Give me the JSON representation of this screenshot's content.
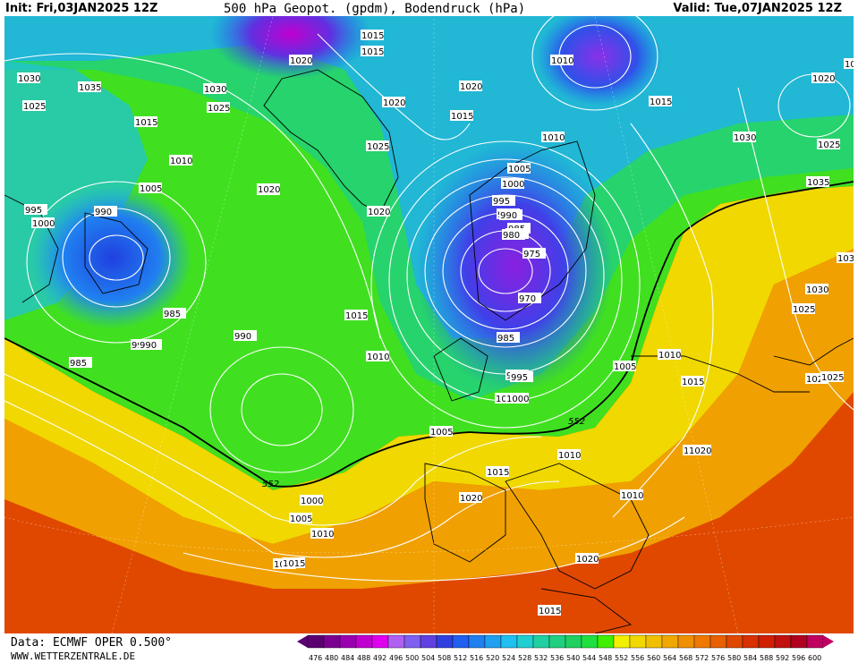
{
  "header": {
    "init": "Init: Fri,03JAN2025 12Z",
    "title": "500 hPa Geopot. (gpdm), Bodendruck (hPa)",
    "valid": "Valid: Tue,07JAN2025 12Z"
  },
  "footer": {
    "data_source": "Data: ECMWF OPER 0.500°",
    "website": "WWW.WETTERZENTRALE.DE"
  },
  "legend": {
    "values": [
      "476",
      "480",
      "484",
      "488",
      "492",
      "496",
      "500",
      "504",
      "508",
      "512",
      "516",
      "520",
      "524",
      "528",
      "532",
      "536",
      "540",
      "544",
      "548",
      "552",
      "556",
      "560",
      "564",
      "568",
      "572",
      "576",
      "580",
      "584",
      "588",
      "592",
      "596",
      "600"
    ],
    "colors": [
      "#5a0070",
      "#7a0090",
      "#9a00b0",
      "#c000d0",
      "#e000f0",
      "#b060f0",
      "#8060f0",
      "#6040e0",
      "#3040e0",
      "#2060f0",
      "#2080f0",
      "#20a0f0",
      "#20c0f0",
      "#20d0d0",
      "#20d0a0",
      "#20d080",
      "#20d060",
      "#20e040",
      "#40f000",
      "#f0f000",
      "#f0d800",
      "#f0c000",
      "#f0a800",
      "#f09000",
      "#f07800",
      "#e86000",
      "#e04800",
      "#d83000",
      "#d02000",
      "#c01010",
      "#b00020",
      "#c00060"
    ]
  },
  "pressure_labels": [
    "1015",
    "1015",
    "1020",
    "1030",
    "1035",
    "1030",
    "1025",
    "1025",
    "1015",
    "1020",
    "1010",
    "1005",
    "1020",
    "1020",
    "1025",
    "1015",
    "1020",
    "1010",
    "1015",
    "1010",
    "1030",
    "1025",
    "1020",
    "1025",
    "1035",
    "1020",
    "1000",
    "995",
    "990",
    "985",
    "995",
    "990",
    "985",
    "990",
    "995",
    "1000",
    "1015",
    "1010",
    "990",
    "985",
    "1005",
    "1000",
    "995",
    "990",
    "985",
    "980",
    "975",
    "970",
    "985",
    "995",
    "1000",
    "1005",
    "1010",
    "1005",
    "1035",
    "1030",
    "1025",
    "1025",
    "1015",
    "1010",
    "1015",
    "1020",
    "1010",
    "1015",
    "1020",
    "1015",
    "1020",
    "1000",
    "1005",
    "1010",
    "1015",
    "1025",
    "1020"
  ],
  "geopotential_labels": [
    "552",
    "552"
  ]
}
